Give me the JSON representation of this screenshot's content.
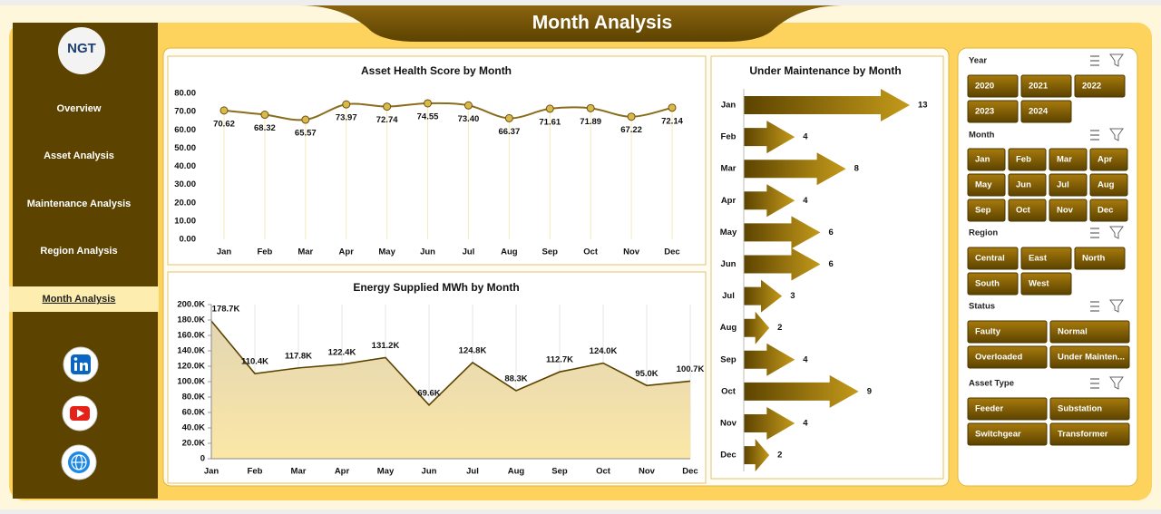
{
  "header": {
    "title": "Month Analysis"
  },
  "sidebar": {
    "logo": "NGT",
    "nav": [
      "Overview",
      "Asset  Analysis",
      "Maintenance Analysis",
      "Region Analysis",
      "Month Analysis"
    ]
  },
  "chart_data": [
    {
      "type": "line",
      "title": "Asset Health Score by Month",
      "categories": [
        "Jan",
        "Feb",
        "Mar",
        "Apr",
        "May",
        "Jun",
        "Jul",
        "Aug",
        "Sep",
        "Oct",
        "Nov",
        "Dec"
      ],
      "values": [
        70.62,
        68.32,
        65.57,
        73.97,
        72.74,
        74.55,
        73.4,
        66.37,
        71.61,
        71.89,
        67.22,
        72.14
      ],
      "value_labels": [
        "70.62",
        "68.32",
        "65.57",
        "73.97",
        "72.74",
        "74.55",
        "73.40",
        "66.37",
        "71.61",
        "71.89",
        "67.22",
        "72.14"
      ],
      "color": "#8a6d1c",
      "ylim": [
        0,
        80
      ],
      "yticks": [
        {
          "value": 0,
          "label": "0.00"
        },
        {
          "value": 10,
          "label": "10.00"
        },
        {
          "value": 20,
          "label": "20.00"
        },
        {
          "value": 30,
          "label": "30.00"
        },
        {
          "value": 40,
          "label": "40.00"
        },
        {
          "value": 50,
          "label": "50.00"
        },
        {
          "value": 60,
          "label": "60.00"
        },
        {
          "value": 70,
          "label": "70.00"
        },
        {
          "value": 80,
          "label": "80.00"
        }
      ]
    },
    {
      "type": "area",
      "title": "Energy Supplied MWh by Month",
      "categories": [
        "Jan",
        "Feb",
        "Mar",
        "Apr",
        "May",
        "Jun",
        "Jul",
        "Aug",
        "Sep",
        "Oct",
        "Nov",
        "Dec"
      ],
      "values": [
        178700,
        110400,
        117800,
        122400,
        131200,
        69600,
        124800,
        88300,
        112700,
        124000,
        95000,
        100700
      ],
      "value_labels": [
        "178.7K",
        "110.4K",
        "117.8K",
        "122.4K",
        "131.2K",
        "69.6K",
        "124.8K",
        "88.3K",
        "112.7K",
        "124.0K",
        "95.0K",
        "100.7K"
      ],
      "color": "#5c4300",
      "ylim": [
        0,
        200000
      ],
      "yticks": [
        0,
        {
          "value": 20000,
          "label": "20.0K"
        },
        {
          "value": 40000,
          "label": "40.0K"
        },
        {
          "value": 60000,
          "label": "60.0K"
        },
        {
          "value": 80000,
          "label": "80.0K"
        },
        {
          "value": 100000,
          "label": "100.0K"
        },
        {
          "value": 120000,
          "label": "120.0K"
        },
        {
          "value": 140000,
          "label": "140.0K"
        },
        {
          "value": 160000,
          "label": "160.0K"
        },
        {
          "value": 180000,
          "label": "180.0K"
        },
        {
          "value": 200000,
          "label": "200.0K"
        }
      ],
      "grid": true
    },
    {
      "type": "hbar",
      "title": "Under Maintenance by Month",
      "categories": [
        "Jan",
        "Feb",
        "Mar",
        "Apr",
        "May",
        "Jun",
        "Jul",
        "Aug",
        "Sep",
        "Oct",
        "Nov",
        "Dec"
      ],
      "values": [
        13,
        4,
        8,
        4,
        6,
        6,
        3,
        2,
        4,
        9,
        4,
        2
      ],
      "color": "#8a6410"
    }
  ],
  "slicers": [
    {
      "title": "Year",
      "items": [
        "2020",
        "2021",
        "2022",
        "2023",
        "2024"
      ]
    },
    {
      "title": "Month",
      "items": [
        "Jan",
        "Feb",
        "Mar",
        "Apr",
        "May",
        "Jun",
        "Jul",
        "Aug",
        "Sep",
        "Oct",
        "Nov",
        "Dec"
      ]
    },
    {
      "title": "Region",
      "items": [
        "Central",
        "East",
        "North",
        "South",
        "West"
      ]
    },
    {
      "title": "Status",
      "items": [
        "Faulty",
        "Normal",
        "Overloaded",
        "Under Mainten..."
      ]
    },
    {
      "title": "Asset Type",
      "items": [
        "Feeder",
        "Substation",
        "Switchgear",
        "Transformer"
      ]
    }
  ]
}
